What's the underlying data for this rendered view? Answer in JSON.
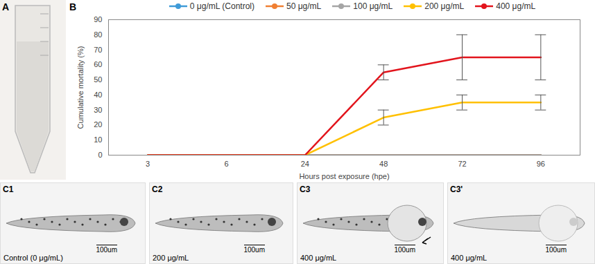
{
  "chart_data": {
    "type": "line",
    "xlabel": "Hours post exposure (hpe)",
    "ylabel": "Cumulative mortality (%)",
    "categories": [
      "3",
      "6",
      "24",
      "48",
      "72",
      "96"
    ],
    "ylim": [
      0,
      90
    ],
    "yticks": [
      0,
      10,
      20,
      30,
      40,
      50,
      60,
      70,
      80,
      90
    ],
    "legend": "top",
    "series": [
      {
        "name": "0 μg/mL (Control)",
        "color": "#3f9bd8",
        "values": [
          0,
          0,
          0,
          0,
          0,
          0
        ]
      },
      {
        "name": "50 μg/mL",
        "color": "#f07f32",
        "values": [
          0,
          0,
          0,
          0,
          0,
          0
        ]
      },
      {
        "name": "100 μg/mL",
        "color": "#a5a5a5",
        "values": [
          0,
          0,
          0,
          0,
          0,
          0
        ]
      },
      {
        "name": "200 μg/mL",
        "color": "#ffc000",
        "values": [
          0,
          0,
          0,
          25,
          35,
          35
        ],
        "errors": [
          null,
          null,
          null,
          5,
          5,
          5
        ]
      },
      {
        "name": "400 μg/mL",
        "color": "#e2141c",
        "values": [
          0,
          0,
          0,
          55,
          65,
          65
        ],
        "errors": [
          null,
          null,
          null,
          5,
          15,
          15
        ]
      }
    ]
  },
  "figure": {
    "panel_labels": [
      "A",
      "B"
    ],
    "images": [
      {
        "label": "C1",
        "caption": "Control (0 μg/mL)",
        "scale_bar": "100um"
      },
      {
        "label": "C2",
        "caption": "200 μg/mL",
        "scale_bar": "100um"
      },
      {
        "label": "C3",
        "caption": "400 μg/mL",
        "scale_bar": "100um"
      },
      {
        "label": "C3'",
        "caption": "400 μg/mL",
        "scale_bar": "100um"
      }
    ]
  }
}
